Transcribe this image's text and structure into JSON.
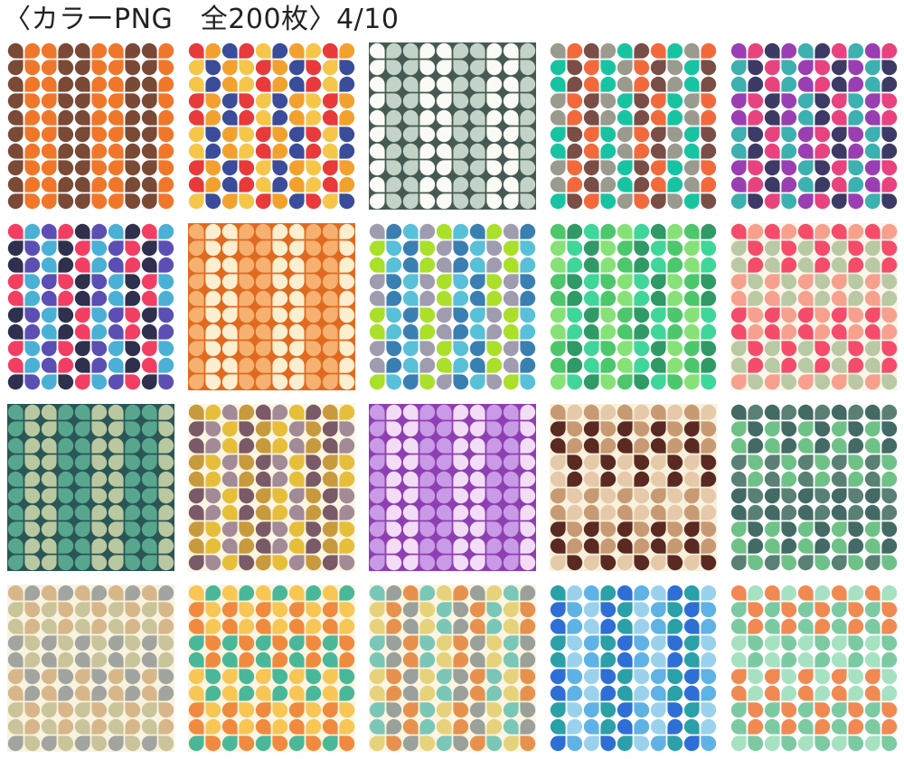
{
  "header": {
    "title": "〈カラーPNG　全200枚〉4/10"
  },
  "tiles": [
    {
      "bg": "#ffffff",
      "colors": [
        "#7a4a36",
        "#f0772a"
      ]
    },
    {
      "bg": "#ffffff",
      "colors": [
        "#3a4c9a",
        "#e83a3a",
        "#f3a12e",
        "#f5c64a"
      ]
    },
    {
      "bg": "#455a53",
      "colors": [
        "#fbfbf6",
        "#c3d3c7"
      ]
    },
    {
      "bg": "#ffffff",
      "colors": [
        "#f26a3c",
        "#18c3a2",
        "#7a4e46",
        "#9a9a8e"
      ]
    },
    {
      "bg": "#ffffff",
      "colors": [
        "#9a3fb2",
        "#e8437e",
        "#3db0b0",
        "#3e3a66"
      ]
    },
    {
      "bg": "#ffffff",
      "colors": [
        "#5b4fb4",
        "#f23e62",
        "#4ab0d6",
        "#2f2f4e"
      ]
    },
    {
      "bg": "#e06a20",
      "colors": [
        "#f6b070",
        "#fcefcf"
      ]
    },
    {
      "bg": "#ffffff",
      "colors": [
        "#3a7fb2",
        "#aadf2a",
        "#58c0d8",
        "#9f9cb0"
      ]
    },
    {
      "bg": "#ffffff",
      "colors": [
        "#4cc76c",
        "#2f9a66",
        "#86e276",
        "#3fd69a"
      ]
    },
    {
      "bg": "#fbf6ea",
      "colors": [
        "#f44c6a",
        "#f7a08e",
        "#b9c9a4"
      ]
    },
    {
      "bg": "#2a5656",
      "colors": [
        "#58a68e",
        "#b9c8a0"
      ]
    },
    {
      "bg": "#fbf5e2",
      "colors": [
        "#e6be3a",
        "#7a5a66",
        "#a28a96",
        "#c89a3e"
      ]
    },
    {
      "bg": "#8e3fb2",
      "colors": [
        "#c99ae6",
        "#f3dcf6"
      ]
    },
    {
      "bg": "#f8f1dd",
      "colors": [
        "#5a2a22",
        "#c79a74",
        "#e6c9a8"
      ]
    },
    {
      "bg": "#ffffff",
      "colors": [
        "#5a8076",
        "#6fc287",
        "#436a64"
      ]
    },
    {
      "bg": "#f8f3df",
      "colors": [
        "#d7b78a",
        "#a2a4a0",
        "#c9c49a"
      ]
    },
    {
      "bg": "#fbf5e2",
      "colors": [
        "#f08a3e",
        "#f8c654",
        "#4ab898"
      ]
    },
    {
      "bg": "#fbf5e2",
      "colors": [
        "#e6924e",
        "#7ac7b8",
        "#9aa19a",
        "#e6d27a"
      ]
    },
    {
      "bg": "#ffffff",
      "colors": [
        "#2e6fd6",
        "#5fb2e6",
        "#2aa0a8",
        "#9ad2ee"
      ]
    },
    {
      "bg": "#ffffff",
      "colors": [
        "#7ccaa2",
        "#f08a52",
        "#a6e2c2"
      ]
    }
  ]
}
